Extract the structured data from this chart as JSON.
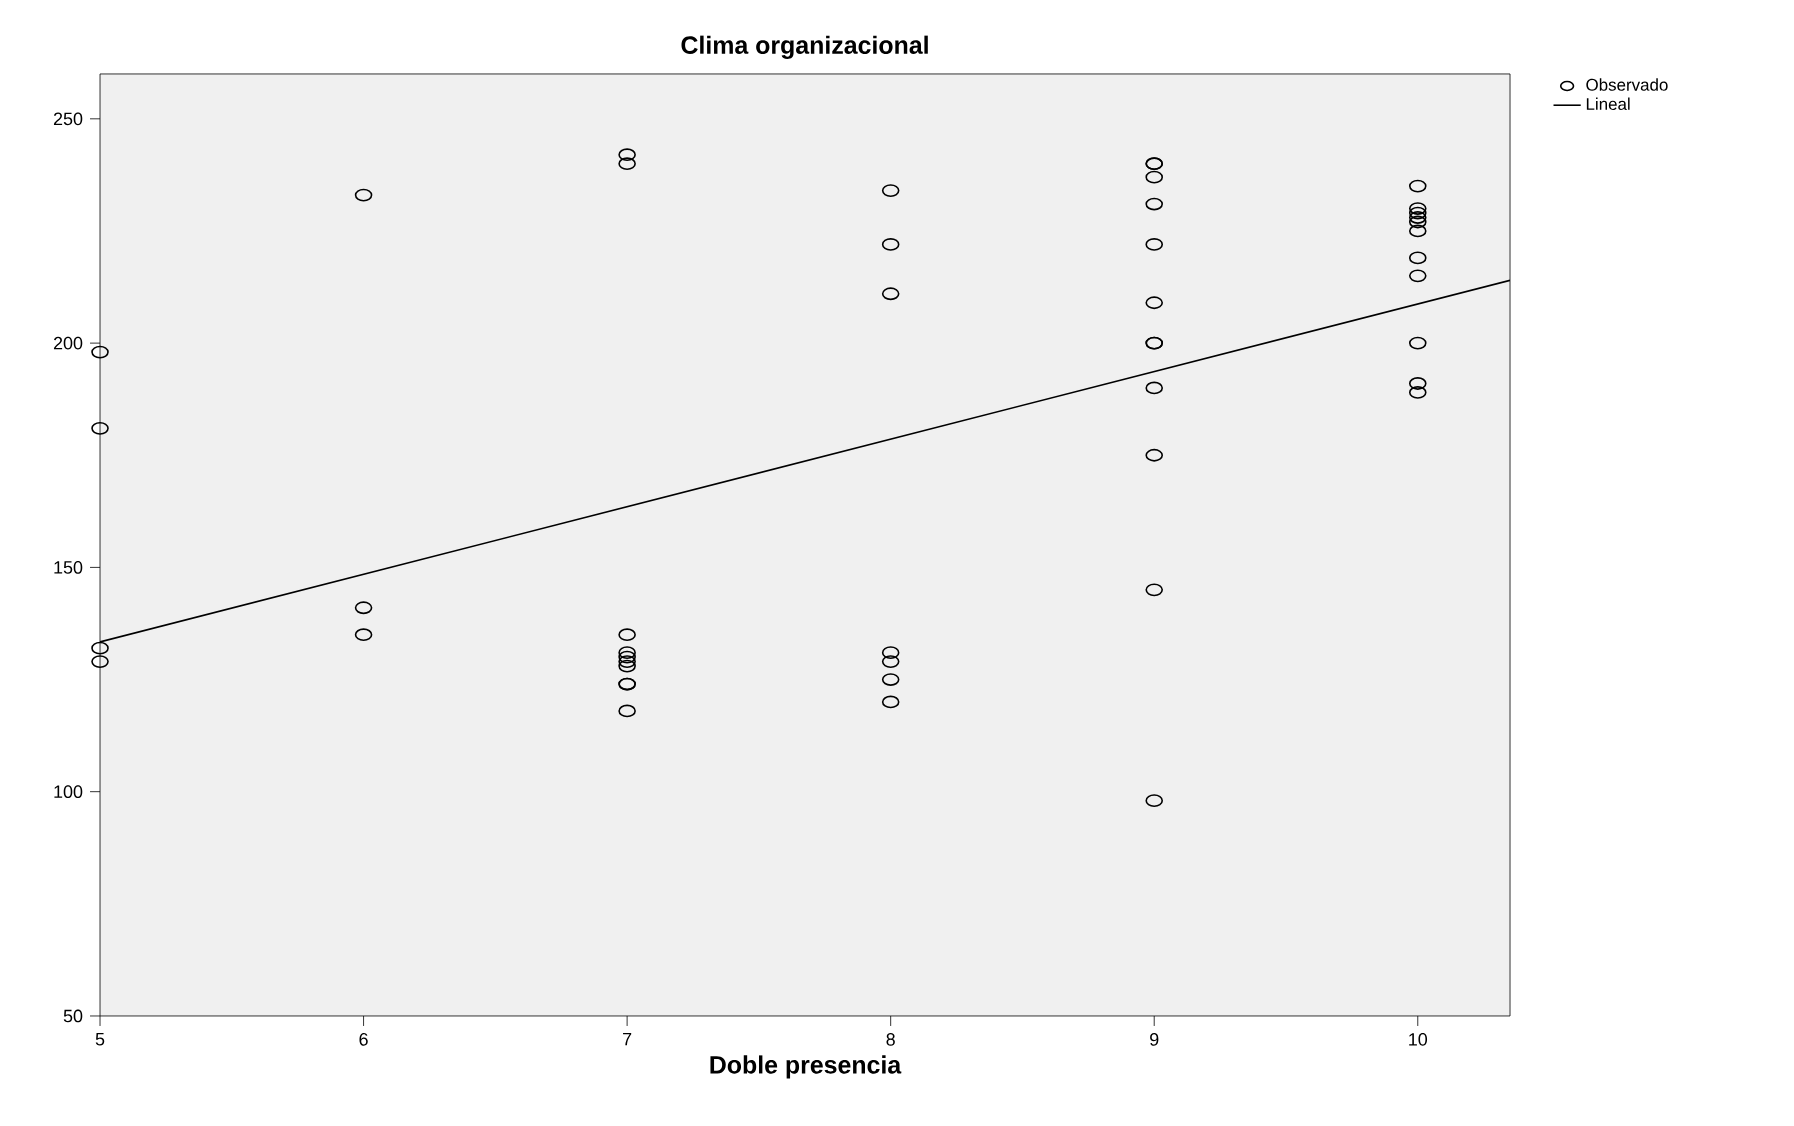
{
  "chart_data": {
    "type": "scatter",
    "title": "Clima organizacional",
    "xlabel": "Doble presencia",
    "xlim": [
      5,
      10.35
    ],
    "ylim": [
      50,
      260
    ],
    "xticks": [
      5,
      6,
      7,
      8,
      9,
      10
    ],
    "yticks": [
      50,
      100,
      150,
      200,
      250
    ],
    "grid": false,
    "legend": "top right",
    "marker": "circle",
    "series": [
      {
        "name": "Observado",
        "color": "#000000",
        "x": [
          5,
          5,
          5,
          5,
          6,
          6,
          6,
          7,
          7,
          7,
          7,
          7,
          7,
          7,
          7,
          7,
          7,
          8,
          8,
          8,
          8,
          8,
          8,
          8,
          9,
          9,
          9,
          9,
          9,
          9,
          9,
          9,
          9,
          9,
          9,
          9,
          10,
          10,
          10,
          10,
          10,
          10,
          10,
          10,
          10,
          10,
          10
        ],
        "values": [
          198,
          181,
          132,
          129,
          233,
          141,
          135,
          242,
          240,
          135,
          131,
          130,
          129,
          128,
          124,
          124,
          118,
          234,
          222,
          211,
          131,
          129,
          125,
          120,
          240,
          240,
          237,
          231,
          222,
          209,
          200,
          200,
          190,
          175,
          145,
          98,
          235,
          230,
          229,
          228,
          227,
          225,
          219,
          215,
          200,
          191,
          189
        ]
      },
      {
        "name": "Lineal",
        "type": "line",
        "color": "#000000",
        "line_style": "solid",
        "marker": "none",
        "x": [
          5,
          10.35
        ],
        "values": [
          133.4,
          214
        ]
      }
    ]
  }
}
